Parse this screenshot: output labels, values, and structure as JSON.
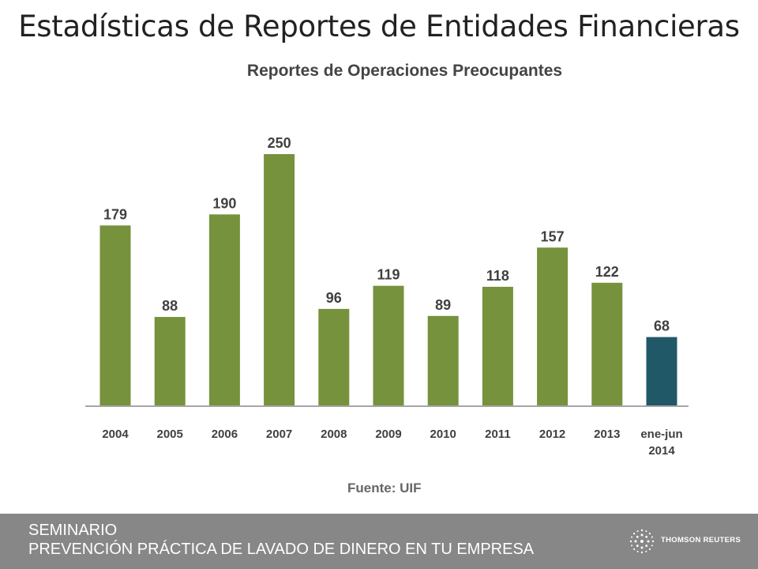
{
  "slide": {
    "title": "Estadísticas de Reportes de Entidades Financieras"
  },
  "chart_data": {
    "type": "bar",
    "title": "Reportes de Operaciones Preocupantes",
    "categories": [
      "2004",
      "2005",
      "2006",
      "2007",
      "2008",
      "2009",
      "2010",
      "2011",
      "2012",
      "2013",
      "ene-jun\n2014"
    ],
    "values": [
      179,
      88,
      190,
      250,
      96,
      119,
      89,
      118,
      157,
      122,
      68
    ],
    "data_labels": [
      "179",
      "88",
      "190",
      "250",
      "96",
      "119",
      "89",
      "118",
      "157",
      "122",
      "68"
    ],
    "colors": [
      "#76923c",
      "#76923c",
      "#76923c",
      "#76923c",
      "#76923c",
      "#76923c",
      "#76923c",
      "#76923c",
      "#76923c",
      "#76923c",
      "#215867"
    ],
    "xlabel": "",
    "ylabel": "",
    "ylim": [
      0,
      250
    ],
    "grid": false,
    "source": "Fuente: UIF"
  },
  "footer": {
    "line1": "SEMINARIO",
    "line2": "PREVENCIÓN PRÁCTICA DE LAVADO DE DINERO EN TU EMPRESA",
    "logo_text": "THOMSON REUTERS",
    "logo_icon": "thomson-reuters-logo-icon",
    "background": "#878787"
  }
}
